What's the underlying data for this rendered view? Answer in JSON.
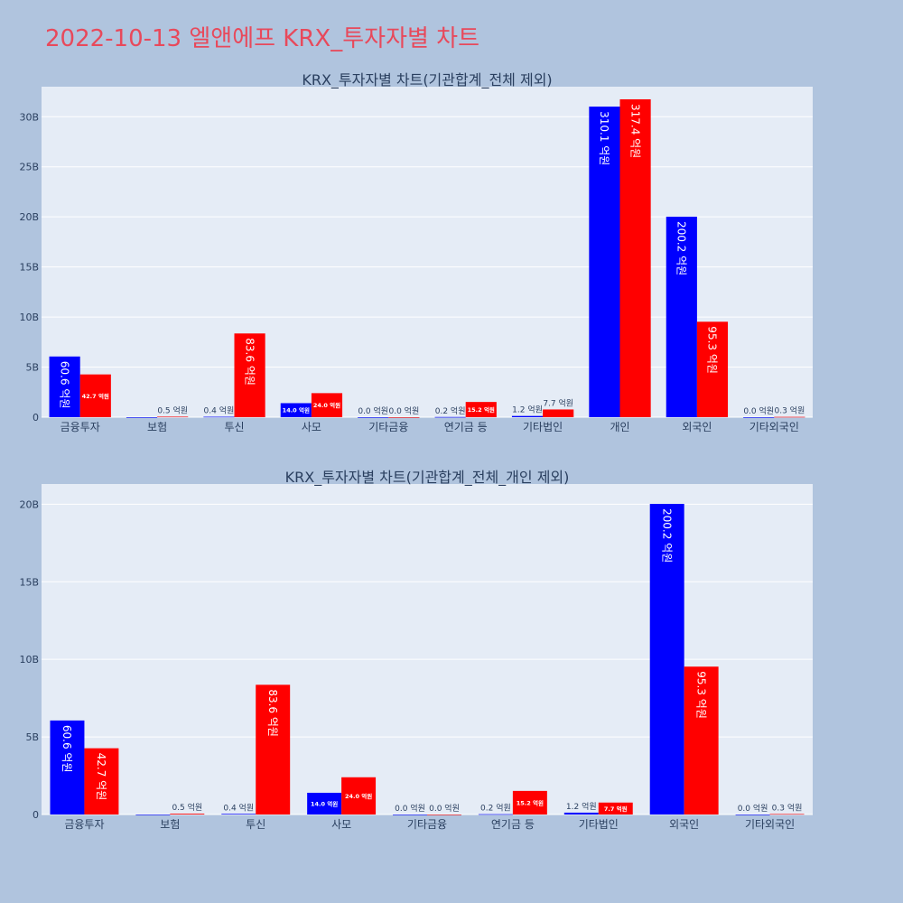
{
  "title": "2022-10-13 엘앤에프 KRX_투자자별 차트",
  "colors": {
    "series1": "#0000ff",
    "series2": "#ff0000",
    "plot_bg": "#e5ecf6",
    "page_bg": "#b0c4de",
    "title": "#e8495b"
  },
  "chart_data": [
    {
      "type": "bar",
      "title": "KRX_투자자별 차트(기관합계_전체 제외)",
      "categories": [
        "금융투자",
        "보험",
        "투신",
        "사모",
        "기타금융",
        "연기금 등",
        "기타법인",
        "개인",
        "외국인",
        "기타외국인"
      ],
      "series": [
        {
          "values": [
            6.06,
            0.0,
            0.04,
            1.4,
            0.0,
            0.02,
            0.12,
            31.01,
            20.02,
            0.0
          ],
          "labels": [
            "60.6 억원",
            "",
            "0.4 억원",
            "14.0 억원",
            "0.0 억원",
            "0.2 억원",
            "1.2 억원",
            "310.1 억원",
            "200.2 억원",
            "0.0 억원"
          ]
        },
        {
          "values": [
            4.27,
            0.05,
            8.36,
            2.4,
            0.0,
            1.52,
            0.77,
            31.74,
            9.53,
            0.03
          ],
          "labels": [
            "42.7 억원",
            "0.5 억원",
            "83.6 억원",
            "24.0 억원",
            "0.0 억원",
            "15.2 억원",
            "7.7 억원",
            "317.4 억원",
            "95.3 억원",
            "0.3 억원"
          ]
        }
      ],
      "yticks": [
        "0",
        "5B",
        "10B",
        "15B",
        "20B",
        "25B",
        "30B"
      ],
      "ylim": [
        0,
        33
      ],
      "grid": true
    },
    {
      "type": "bar",
      "title": "KRX_투자자별 차트(기관합계_전체_개인 제외)",
      "categories": [
        "금융투자",
        "보험",
        "투신",
        "사모",
        "기타금융",
        "연기금 등",
        "기타법인",
        "외국인",
        "기타외국인"
      ],
      "series": [
        {
          "values": [
            6.06,
            0.0,
            0.04,
            1.4,
            0.0,
            0.02,
            0.12,
            20.02,
            0.0
          ],
          "labels": [
            "60.6 억원",
            "",
            "0.4 억원",
            "14.0 억원",
            "0.0 억원",
            "0.2 억원",
            "1.2 억원",
            "200.2 억원",
            "0.0 억원"
          ]
        },
        {
          "values": [
            4.27,
            0.05,
            8.36,
            2.4,
            0.0,
            1.52,
            0.77,
            9.53,
            0.03
          ],
          "labels": [
            "42.7 억원",
            "0.5 억원",
            "83.6 억원",
            "24.0 억원",
            "0.0 억원",
            "15.2 억원",
            "7.7 억원",
            "95.3 억원",
            "0.3 억원"
          ]
        }
      ],
      "yticks": [
        "0",
        "5B",
        "10B",
        "15B",
        "20B"
      ],
      "ylim": [
        0,
        21.3
      ],
      "grid": true
    }
  ]
}
